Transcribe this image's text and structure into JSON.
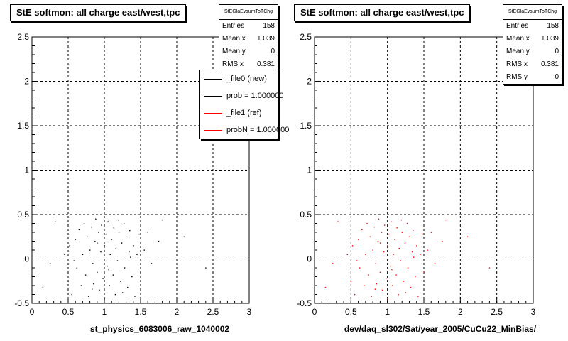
{
  "chart_data": [
    {
      "type": "scatter",
      "title": "StE softmon: all charge east/west,tpc",
      "xlabel": "st_physics_6083006_raw_1040002",
      "ylabel": "",
      "xlim": [
        0,
        3
      ],
      "ylim": [
        -0.5,
        2.5
      ],
      "x_ticks": [
        "0",
        "0.5",
        "1",
        "1.5",
        "2",
        "2.5",
        "3"
      ],
      "y_ticks": [
        "-0.5",
        "0",
        "0.5",
        "1",
        "1.5",
        "2",
        "2.5"
      ],
      "grid": true,
      "marker_color": "#000000",
      "stats": {
        "name": "StEGlaEvsumToTChg",
        "rows": [
          {
            "label": "Entries",
            "value": "158"
          },
          {
            "label": "Mean x",
            "value": "1.039"
          },
          {
            "label": "Mean y",
            "value": "0"
          },
          {
            "label": "RMS x",
            "value": "0.381"
          }
        ]
      },
      "legend": {
        "placement": "top-right",
        "entries": [
          {
            "label": "_file0 (new)",
            "color": "#000000"
          },
          {
            "label": "prob = 1.000000",
            "color": "#000000"
          },
          {
            "label": "_file1 (ref)",
            "color": "#ff0000"
          },
          {
            "label": "probN = 1.000000",
            "color": "#ff0000"
          }
        ]
      },
      "points": [
        [
          0.15,
          -0.32
        ],
        [
          0.25,
          -0.05
        ],
        [
          0.32,
          0.42
        ],
        [
          0.45,
          0.05
        ],
        [
          0.5,
          -0.25
        ],
        [
          0.52,
          0.15
        ],
        [
          0.55,
          -0.4
        ],
        [
          0.6,
          0.22
        ],
        [
          0.62,
          -0.1
        ],
        [
          0.65,
          0.33
        ],
        [
          0.68,
          -0.3
        ],
        [
          0.7,
          0.05
        ],
        [
          0.72,
          0.4
        ],
        [
          0.74,
          -0.18
        ],
        [
          0.76,
          0.25
        ],
        [
          0.78,
          -0.42
        ],
        [
          0.8,
          0.1
        ],
        [
          0.82,
          0.36
        ],
        [
          0.84,
          -0.05
        ],
        [
          0.85,
          -0.28
        ],
        [
          0.87,
          0.2
        ],
        [
          0.88,
          0.45
        ],
        [
          0.9,
          -0.15
        ],
        [
          0.92,
          0.3
        ],
        [
          0.93,
          -0.35
        ],
        [
          0.95,
          0.08
        ],
        [
          0.96,
          0.38
        ],
        [
          0.98,
          -0.22
        ],
        [
          1.0,
          0.15
        ],
        [
          1.0,
          -0.45
        ],
        [
          1.02,
          0.28
        ],
        [
          1.04,
          -0.08
        ],
        [
          1.05,
          0.42
        ],
        [
          1.07,
          -0.3
        ],
        [
          1.08,
          0.05
        ],
        [
          1.1,
          0.22
        ],
        [
          1.12,
          -0.18
        ],
        [
          1.13,
          0.35
        ],
        [
          1.15,
          -0.4
        ],
        [
          1.16,
          0.12
        ],
        [
          1.18,
          -0.02
        ],
        [
          1.2,
          0.3
        ],
        [
          1.22,
          -0.25
        ],
        [
          1.24,
          0.18
        ],
        [
          1.25,
          -0.38
        ],
        [
          1.27,
          0.4
        ],
        [
          1.28,
          -0.1
        ],
        [
          1.3,
          0.25
        ],
        [
          1.32,
          -0.32
        ],
        [
          1.34,
          0.08
        ],
        [
          1.35,
          0.32
        ],
        [
          1.38,
          -0.2
        ],
        [
          1.4,
          0.15
        ],
        [
          1.42,
          -0.42
        ],
        [
          1.45,
          0.05
        ],
        [
          1.48,
          0.28
        ],
        [
          1.5,
          -0.15
        ],
        [
          1.55,
          0.1
        ],
        [
          1.6,
          0.3
        ],
        [
          1.65,
          -0.05
        ],
        [
          1.75,
          0.2
        ],
        [
          1.8,
          0.44
        ],
        [
          2.1,
          0.25
        ],
        [
          2.4,
          -0.1
        ],
        [
          0.58,
          -0.02
        ],
        [
          0.9,
          0.18
        ],
        [
          1.06,
          -0.12
        ],
        [
          1.36,
          0.02
        ],
        [
          0.83,
          -0.34
        ],
        [
          1.19,
          0.44
        ]
      ]
    },
    {
      "type": "scatter",
      "title": "StE softmon: all charge east/west,tpc",
      "xlabel": "dev/daq_sl302/Sat/year_2005/CuCu22_MinBias/",
      "ylabel": "",
      "xlim": [
        0,
        3
      ],
      "ylim": [
        -0.5,
        2.5
      ],
      "x_ticks": [
        "0",
        "0.5",
        "1",
        "1.5",
        "2",
        "2.5",
        "3"
      ],
      "y_ticks": [
        "-0.5",
        "0",
        "0.5",
        "1",
        "1.5",
        "2",
        "2.5"
      ],
      "grid": true,
      "marker_color": "#ff0000",
      "stats": {
        "name": "StEGlaEvsumToTChg",
        "rows": [
          {
            "label": "Entries",
            "value": "158"
          },
          {
            "label": "Mean x",
            "value": "1.039"
          },
          {
            "label": "Mean y",
            "value": "0"
          },
          {
            "label": "RMS x",
            "value": "0.381"
          },
          {
            "label": "RMS y",
            "value": "0"
          }
        ]
      },
      "points": [
        [
          0.15,
          -0.32
        ],
        [
          0.25,
          -0.05
        ],
        [
          0.32,
          0.42
        ],
        [
          0.45,
          0.05
        ],
        [
          0.5,
          -0.25
        ],
        [
          0.52,
          0.15
        ],
        [
          0.55,
          -0.4
        ],
        [
          0.6,
          0.22
        ],
        [
          0.62,
          -0.1
        ],
        [
          0.65,
          0.33
        ],
        [
          0.68,
          -0.3
        ],
        [
          0.7,
          0.05
        ],
        [
          0.72,
          0.4
        ],
        [
          0.74,
          -0.18
        ],
        [
          0.76,
          0.25
        ],
        [
          0.78,
          -0.42
        ],
        [
          0.8,
          0.1
        ],
        [
          0.82,
          0.36
        ],
        [
          0.84,
          -0.05
        ],
        [
          0.85,
          -0.28
        ],
        [
          0.87,
          0.2
        ],
        [
          0.88,
          0.45
        ],
        [
          0.9,
          -0.15
        ],
        [
          0.92,
          0.3
        ],
        [
          0.93,
          -0.35
        ],
        [
          0.95,
          0.08
        ],
        [
          0.96,
          0.38
        ],
        [
          0.98,
          -0.22
        ],
        [
          1.0,
          0.15
        ],
        [
          1.0,
          -0.45
        ],
        [
          1.02,
          0.28
        ],
        [
          1.04,
          -0.08
        ],
        [
          1.05,
          0.42
        ],
        [
          1.07,
          -0.3
        ],
        [
          1.08,
          0.05
        ],
        [
          1.1,
          0.22
        ],
        [
          1.12,
          -0.18
        ],
        [
          1.13,
          0.35
        ],
        [
          1.15,
          -0.4
        ],
        [
          1.16,
          0.12
        ],
        [
          1.18,
          -0.02
        ],
        [
          1.2,
          0.3
        ],
        [
          1.22,
          -0.25
        ],
        [
          1.24,
          0.18
        ],
        [
          1.25,
          -0.38
        ],
        [
          1.27,
          0.4
        ],
        [
          1.28,
          -0.1
        ],
        [
          1.3,
          0.25
        ],
        [
          1.32,
          -0.32
        ],
        [
          1.34,
          0.08
        ],
        [
          1.35,
          0.32
        ],
        [
          1.38,
          -0.2
        ],
        [
          1.4,
          0.15
        ],
        [
          1.42,
          -0.42
        ],
        [
          1.45,
          0.05
        ],
        [
          1.48,
          0.28
        ],
        [
          1.5,
          -0.15
        ],
        [
          1.55,
          0.1
        ],
        [
          1.6,
          0.3
        ],
        [
          1.65,
          -0.05
        ],
        [
          1.75,
          0.2
        ],
        [
          1.8,
          0.44
        ],
        [
          2.1,
          0.25
        ],
        [
          2.4,
          -0.1
        ],
        [
          0.58,
          -0.02
        ],
        [
          0.9,
          0.18
        ],
        [
          1.06,
          -0.12
        ],
        [
          1.36,
          0.02
        ],
        [
          0.83,
          -0.34
        ],
        [
          1.19,
          0.44
        ]
      ]
    }
  ]
}
